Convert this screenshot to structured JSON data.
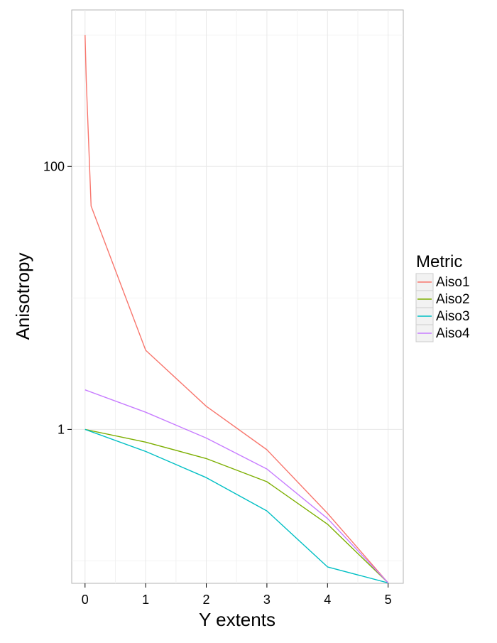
{
  "chart_data": {
    "type": "line",
    "title": "",
    "xlabel": "Y extents",
    "ylabel": "Anisotropy",
    "x_scale": "linear",
    "y_scale": "log",
    "xlim": [
      -0.22,
      5.25
    ],
    "ylim": [
      0.0675,
      1550
    ],
    "x_ticks": [
      {
        "value": 0,
        "label": "0"
      },
      {
        "value": 1,
        "label": "1"
      },
      {
        "value": 2,
        "label": "2"
      },
      {
        "value": 3,
        "label": "3"
      },
      {
        "value": 4,
        "label": "4"
      },
      {
        "value": 5,
        "label": "5"
      }
    ],
    "y_ticks": [
      {
        "value": 1,
        "label": "1"
      },
      {
        "value": 100,
        "label": "100"
      }
    ],
    "y_minor_gridlines": [
      0.1,
      10,
      1000
    ],
    "grid": true,
    "legend": {
      "title": "Metric",
      "position": "right"
    },
    "series": [
      {
        "name": "Aiso1",
        "color": "#F8766D",
        "points": [
          [
            0,
            1000
          ],
          [
            0.02,
            450
          ],
          [
            0.1,
            50
          ],
          [
            1,
            4
          ],
          [
            2,
            1.5
          ],
          [
            3,
            0.7
          ],
          [
            4,
            0.23
          ],
          [
            5,
            0.068
          ]
        ]
      },
      {
        "name": "Aiso2",
        "color": "#7CAE00",
        "points": [
          [
            0,
            1
          ],
          [
            1,
            0.8
          ],
          [
            2,
            0.6
          ],
          [
            3,
            0.4
          ],
          [
            4,
            0.19
          ],
          [
            5,
            0.068
          ]
        ]
      },
      {
        "name": "Aiso3",
        "color": "#00BFC4",
        "points": [
          [
            0,
            1
          ],
          [
            1,
            0.68
          ],
          [
            2,
            0.43
          ],
          [
            3,
            0.24
          ],
          [
            4,
            0.09
          ],
          [
            5,
            0.068
          ]
        ]
      },
      {
        "name": "Aiso4",
        "color": "#C77CFF",
        "points": [
          [
            0,
            2
          ],
          [
            1,
            1.35
          ],
          [
            2,
            0.86
          ],
          [
            3,
            0.5
          ],
          [
            4,
            0.21
          ],
          [
            5,
            0.068
          ]
        ]
      }
    ]
  }
}
